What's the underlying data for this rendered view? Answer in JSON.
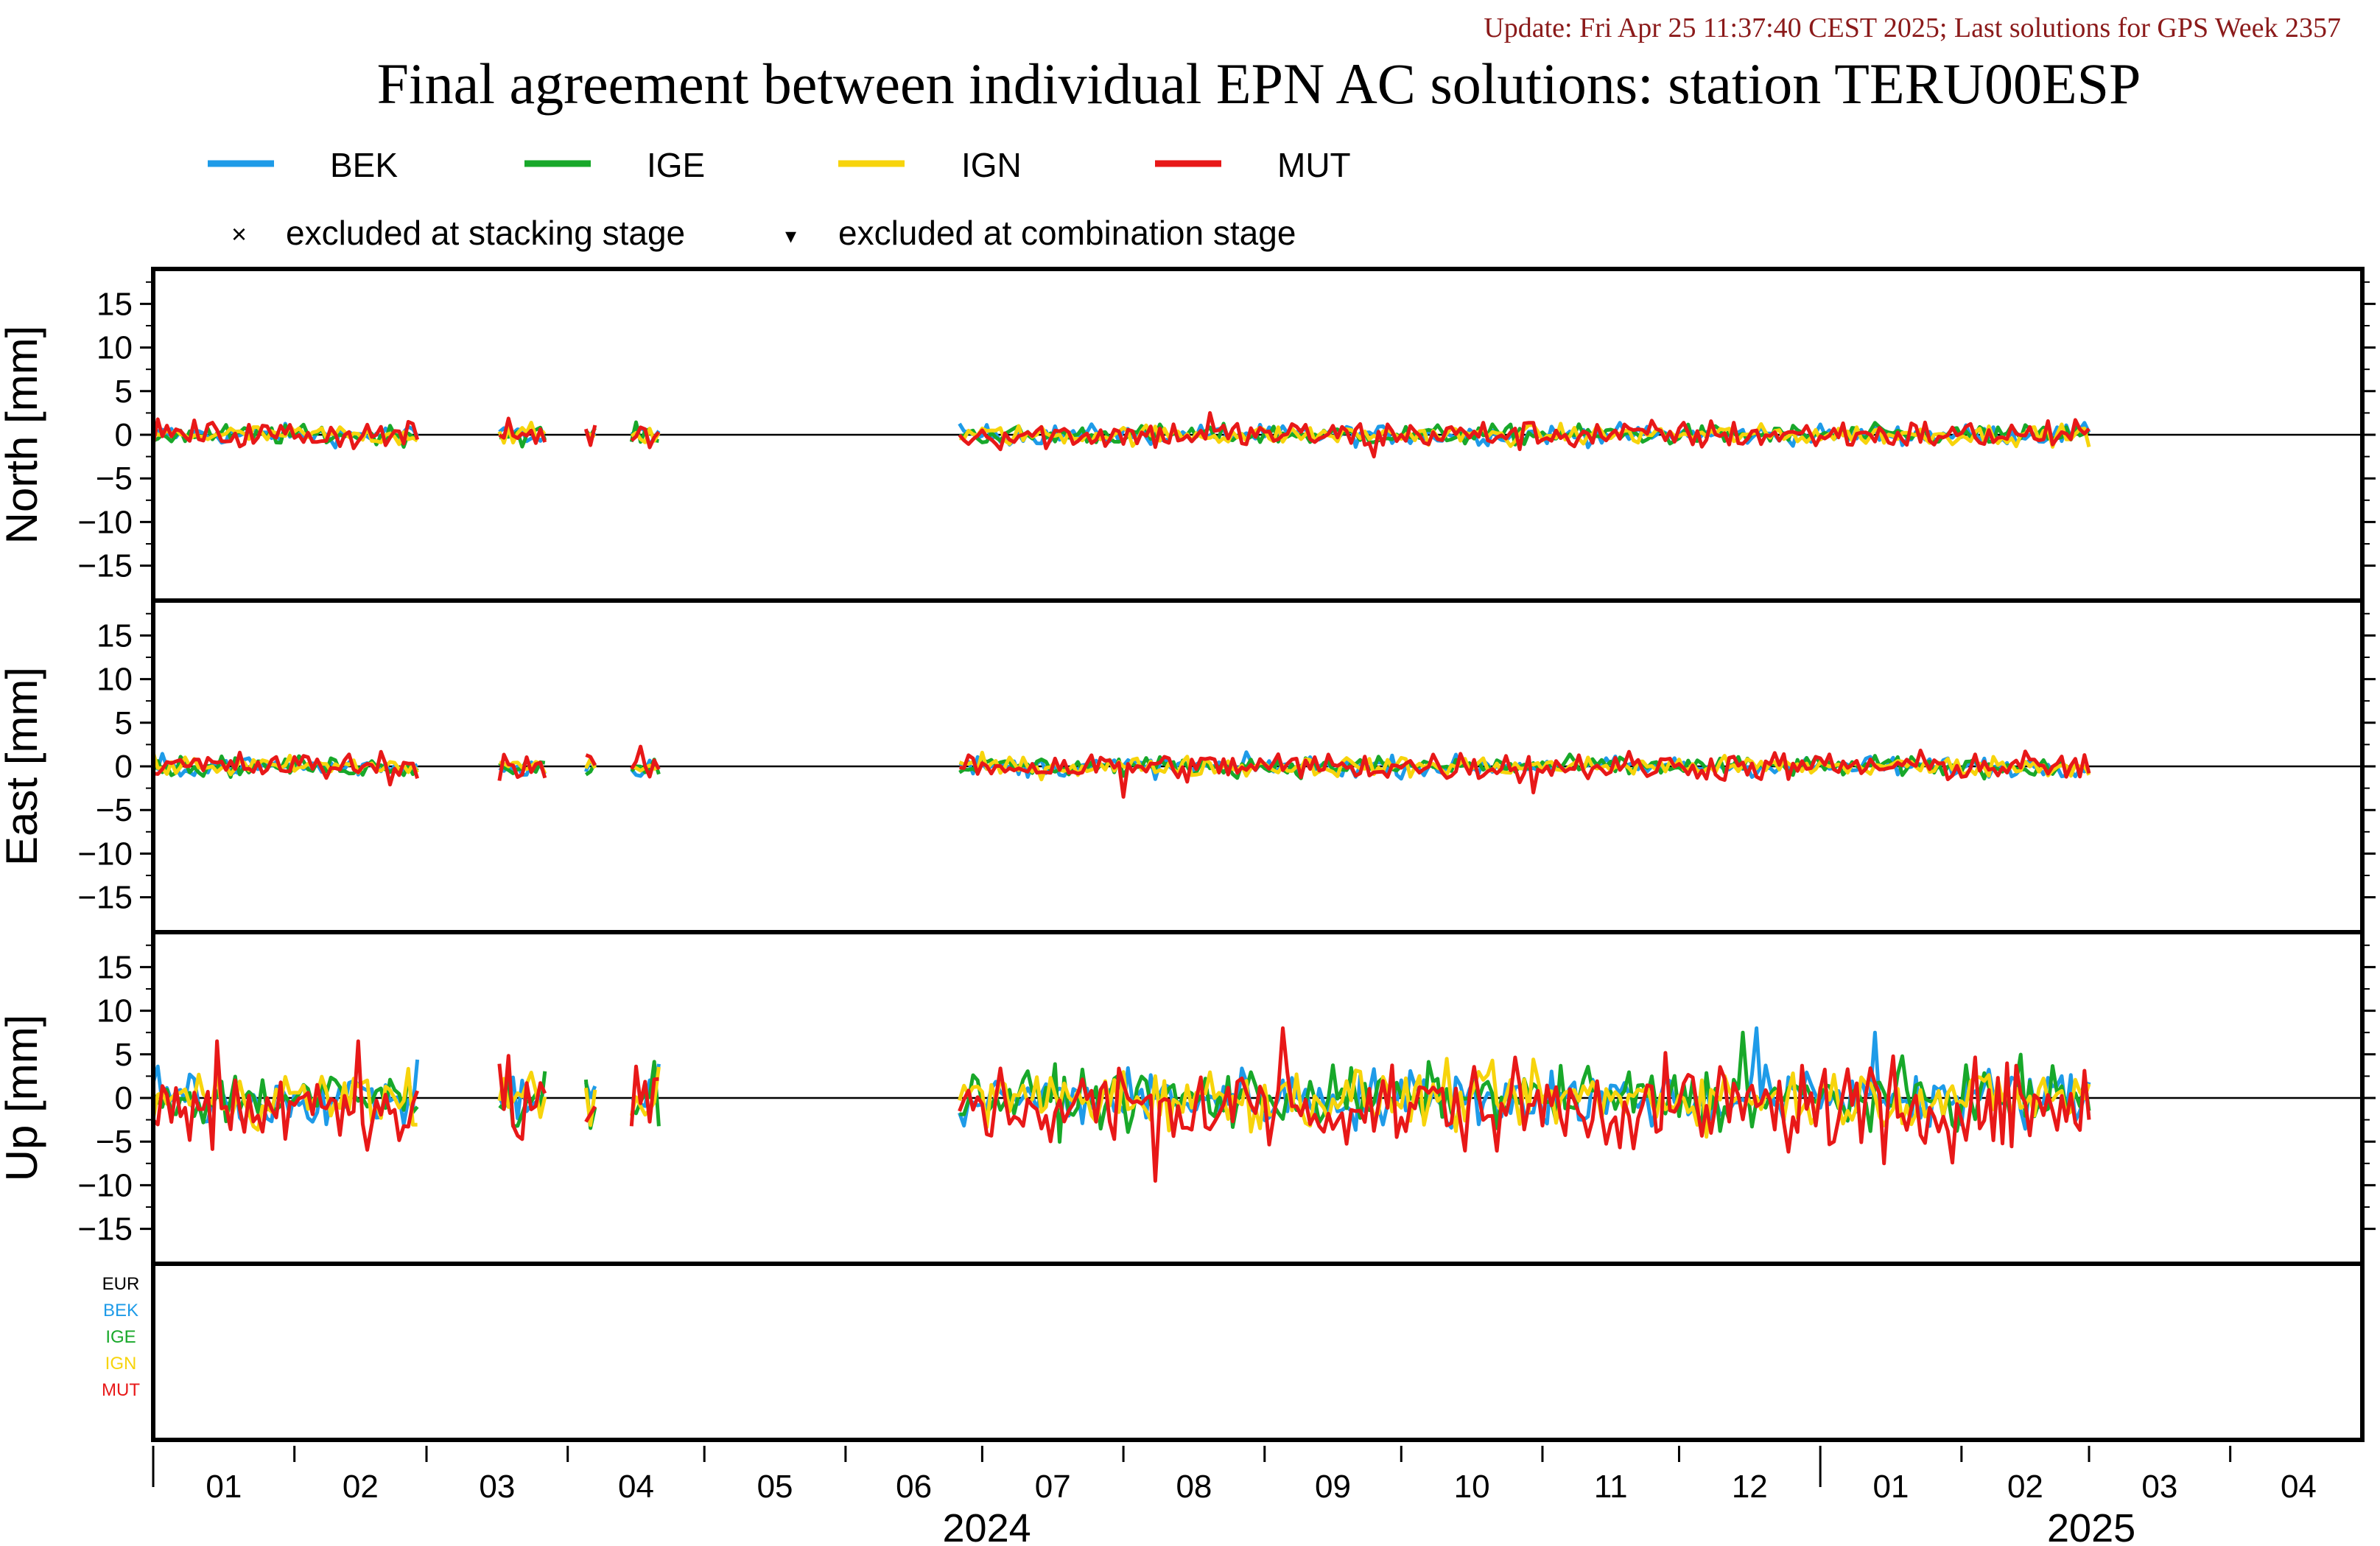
{
  "header": {
    "update_text": "Update: Fri Apr 25 11:37:40 CEST 2025; Last solutions for GPS Week 2357",
    "title": "Final agreement between individual EPN AC solutions: station TERU00ESP"
  },
  "legend": {
    "excluded_stacking_symbol": "×",
    "excluded_stacking_label": "excluded at stacking stage",
    "excluded_combination_symbol": "▾",
    "excluded_combination_label": "excluded at combination stage"
  },
  "colors": {
    "BEK": "#1e9be8",
    "IGE": "#18a82a",
    "IGN": "#f7d40c",
    "MUT": "#e81818",
    "EUR": "#000000"
  },
  "ac_labels": [
    "EUR",
    "BEK",
    "IGE",
    "IGN",
    "MUT"
  ],
  "chart_data": {
    "type": "line",
    "time_axis": {
      "start": "2024-01",
      "end": "2025-04",
      "months": [
        "01",
        "02",
        "03",
        "04",
        "05",
        "06",
        "07",
        "08",
        "09",
        "10",
        "11",
        "12",
        "01",
        "02",
        "03",
        "04"
      ],
      "years": [
        {
          "label": "2024"
        },
        {
          "label": "2025"
        }
      ]
    },
    "panels": [
      {
        "ylabel": "North [mm]",
        "ylim": [
          -19,
          19
        ],
        "yticks": [
          15,
          10,
          5,
          0,
          -5,
          -10,
          -15
        ],
        "approx_amplitude": 1.0
      },
      {
        "ylabel": "East [mm]",
        "ylim": [
          -19,
          19
        ],
        "yticks": [
          15,
          10,
          5,
          0,
          -5,
          -10,
          -15
        ],
        "approx_amplitude": 1.0
      },
      {
        "ylabel": "Up [mm]",
        "ylim": [
          -19,
          19
        ],
        "yticks": [
          15,
          10,
          5,
          0,
          -5,
          -10,
          -15
        ],
        "approx_amplitude": 3.0
      }
    ],
    "series": [
      {
        "name": "BEK"
      },
      {
        "name": "IGE"
      },
      {
        "name": "IGN"
      },
      {
        "name": "MUT"
      }
    ],
    "data_periods": [
      {
        "start": "2024-01-01",
        "end": "2024-02-28"
      },
      {
        "start": "2024-03-17",
        "end": "2024-03-27"
      },
      {
        "start": "2024-04-05",
        "end": "2024-04-07"
      },
      {
        "start": "2024-04-15",
        "end": "2024-04-21"
      },
      {
        "start": "2024-06-26",
        "end": "2025-03-01"
      }
    ],
    "notable_peaks": [
      {
        "panel": "North",
        "series": "MUT",
        "date": "2024-08-20",
        "value": 2.5
      },
      {
        "panel": "North",
        "series": "MUT",
        "date": "2024-09-25",
        "value": -2.5
      },
      {
        "panel": "East",
        "series": "MUT",
        "date": "2024-08-01",
        "value": -3.5
      },
      {
        "panel": "East",
        "series": "MUT",
        "date": "2024-10-30",
        "value": -3.0
      },
      {
        "panel": "Up",
        "series": "MUT",
        "date": "2024-01-15",
        "value": 6.5
      },
      {
        "panel": "Up",
        "series": "MUT",
        "date": "2024-02-15",
        "value": 6.5
      },
      {
        "panel": "Up",
        "series": "MUT",
        "date": "2024-08-08",
        "value": -9.5
      },
      {
        "panel": "Up",
        "series": "MUT",
        "date": "2024-09-05",
        "value": 8.0
      },
      {
        "panel": "Up",
        "series": "IGE",
        "date": "2024-12-15",
        "value": 7.5
      },
      {
        "panel": "Up",
        "series": "BEK",
        "date": "2024-12-18",
        "value": 8.0
      },
      {
        "panel": "Up",
        "series": "BEK",
        "date": "2025-01-13",
        "value": 7.5
      },
      {
        "panel": "Up",
        "series": "MUT",
        "date": "2025-01-15",
        "value": -7.5
      }
    ]
  }
}
